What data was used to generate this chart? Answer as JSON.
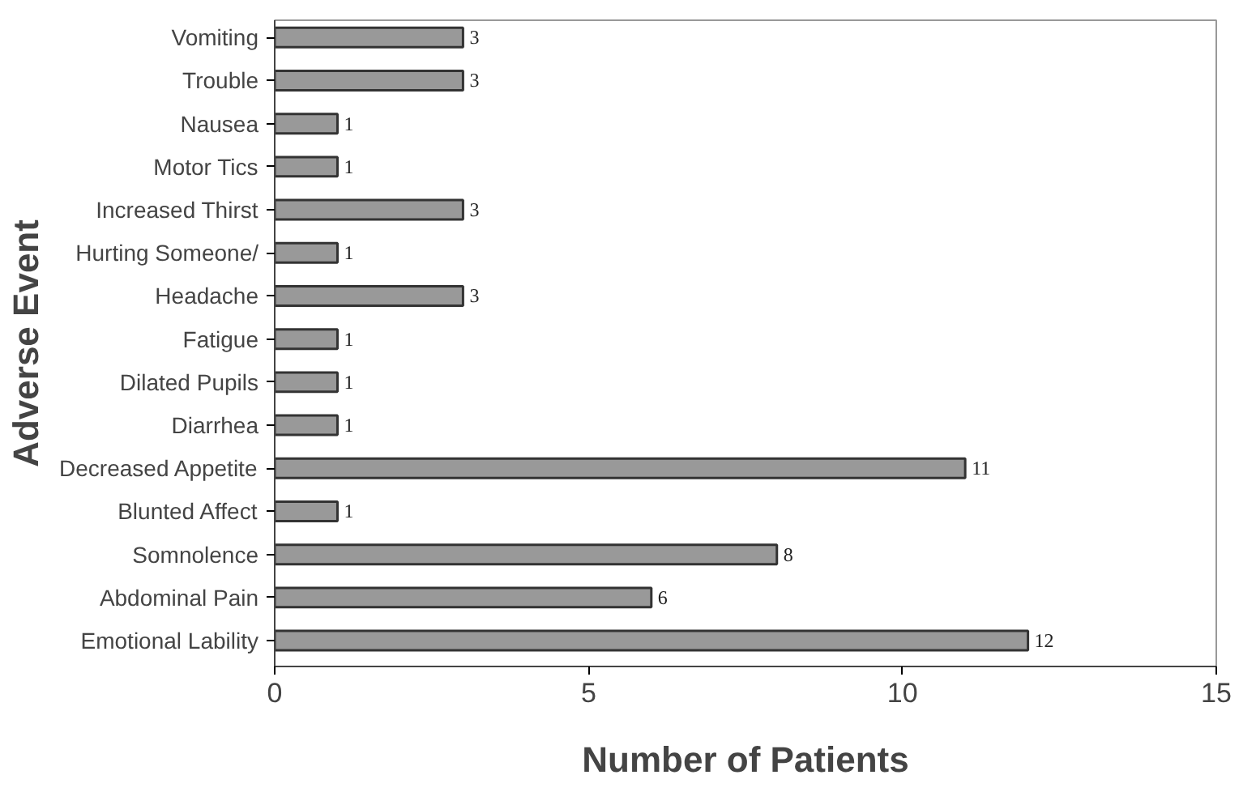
{
  "chart_data": {
    "type": "bar",
    "orientation": "horizontal",
    "xlabel": "Number of Patients",
    "ylabel": "Adverse Event",
    "categories": [
      "Vomiting",
      "Trouble",
      "Nausea",
      "Motor Tics",
      "Increased Thirst",
      "Hurting Someone/",
      "Headache",
      "Fatigue",
      "Dilated Pupils",
      "Diarrhea",
      "Decreased Appetite",
      "Blunted Affect",
      "Somnolence",
      "Abdominal Pain",
      "Emotional Lability"
    ],
    "values": [
      3,
      3,
      1,
      1,
      3,
      1,
      3,
      1,
      1,
      1,
      11,
      1,
      8,
      6,
      12
    ],
    "color": "#999999",
    "xlim": [
      0,
      15
    ],
    "xticks": [
      0,
      5,
      10,
      15
    ],
    "grid": false,
    "data_labels": true
  }
}
